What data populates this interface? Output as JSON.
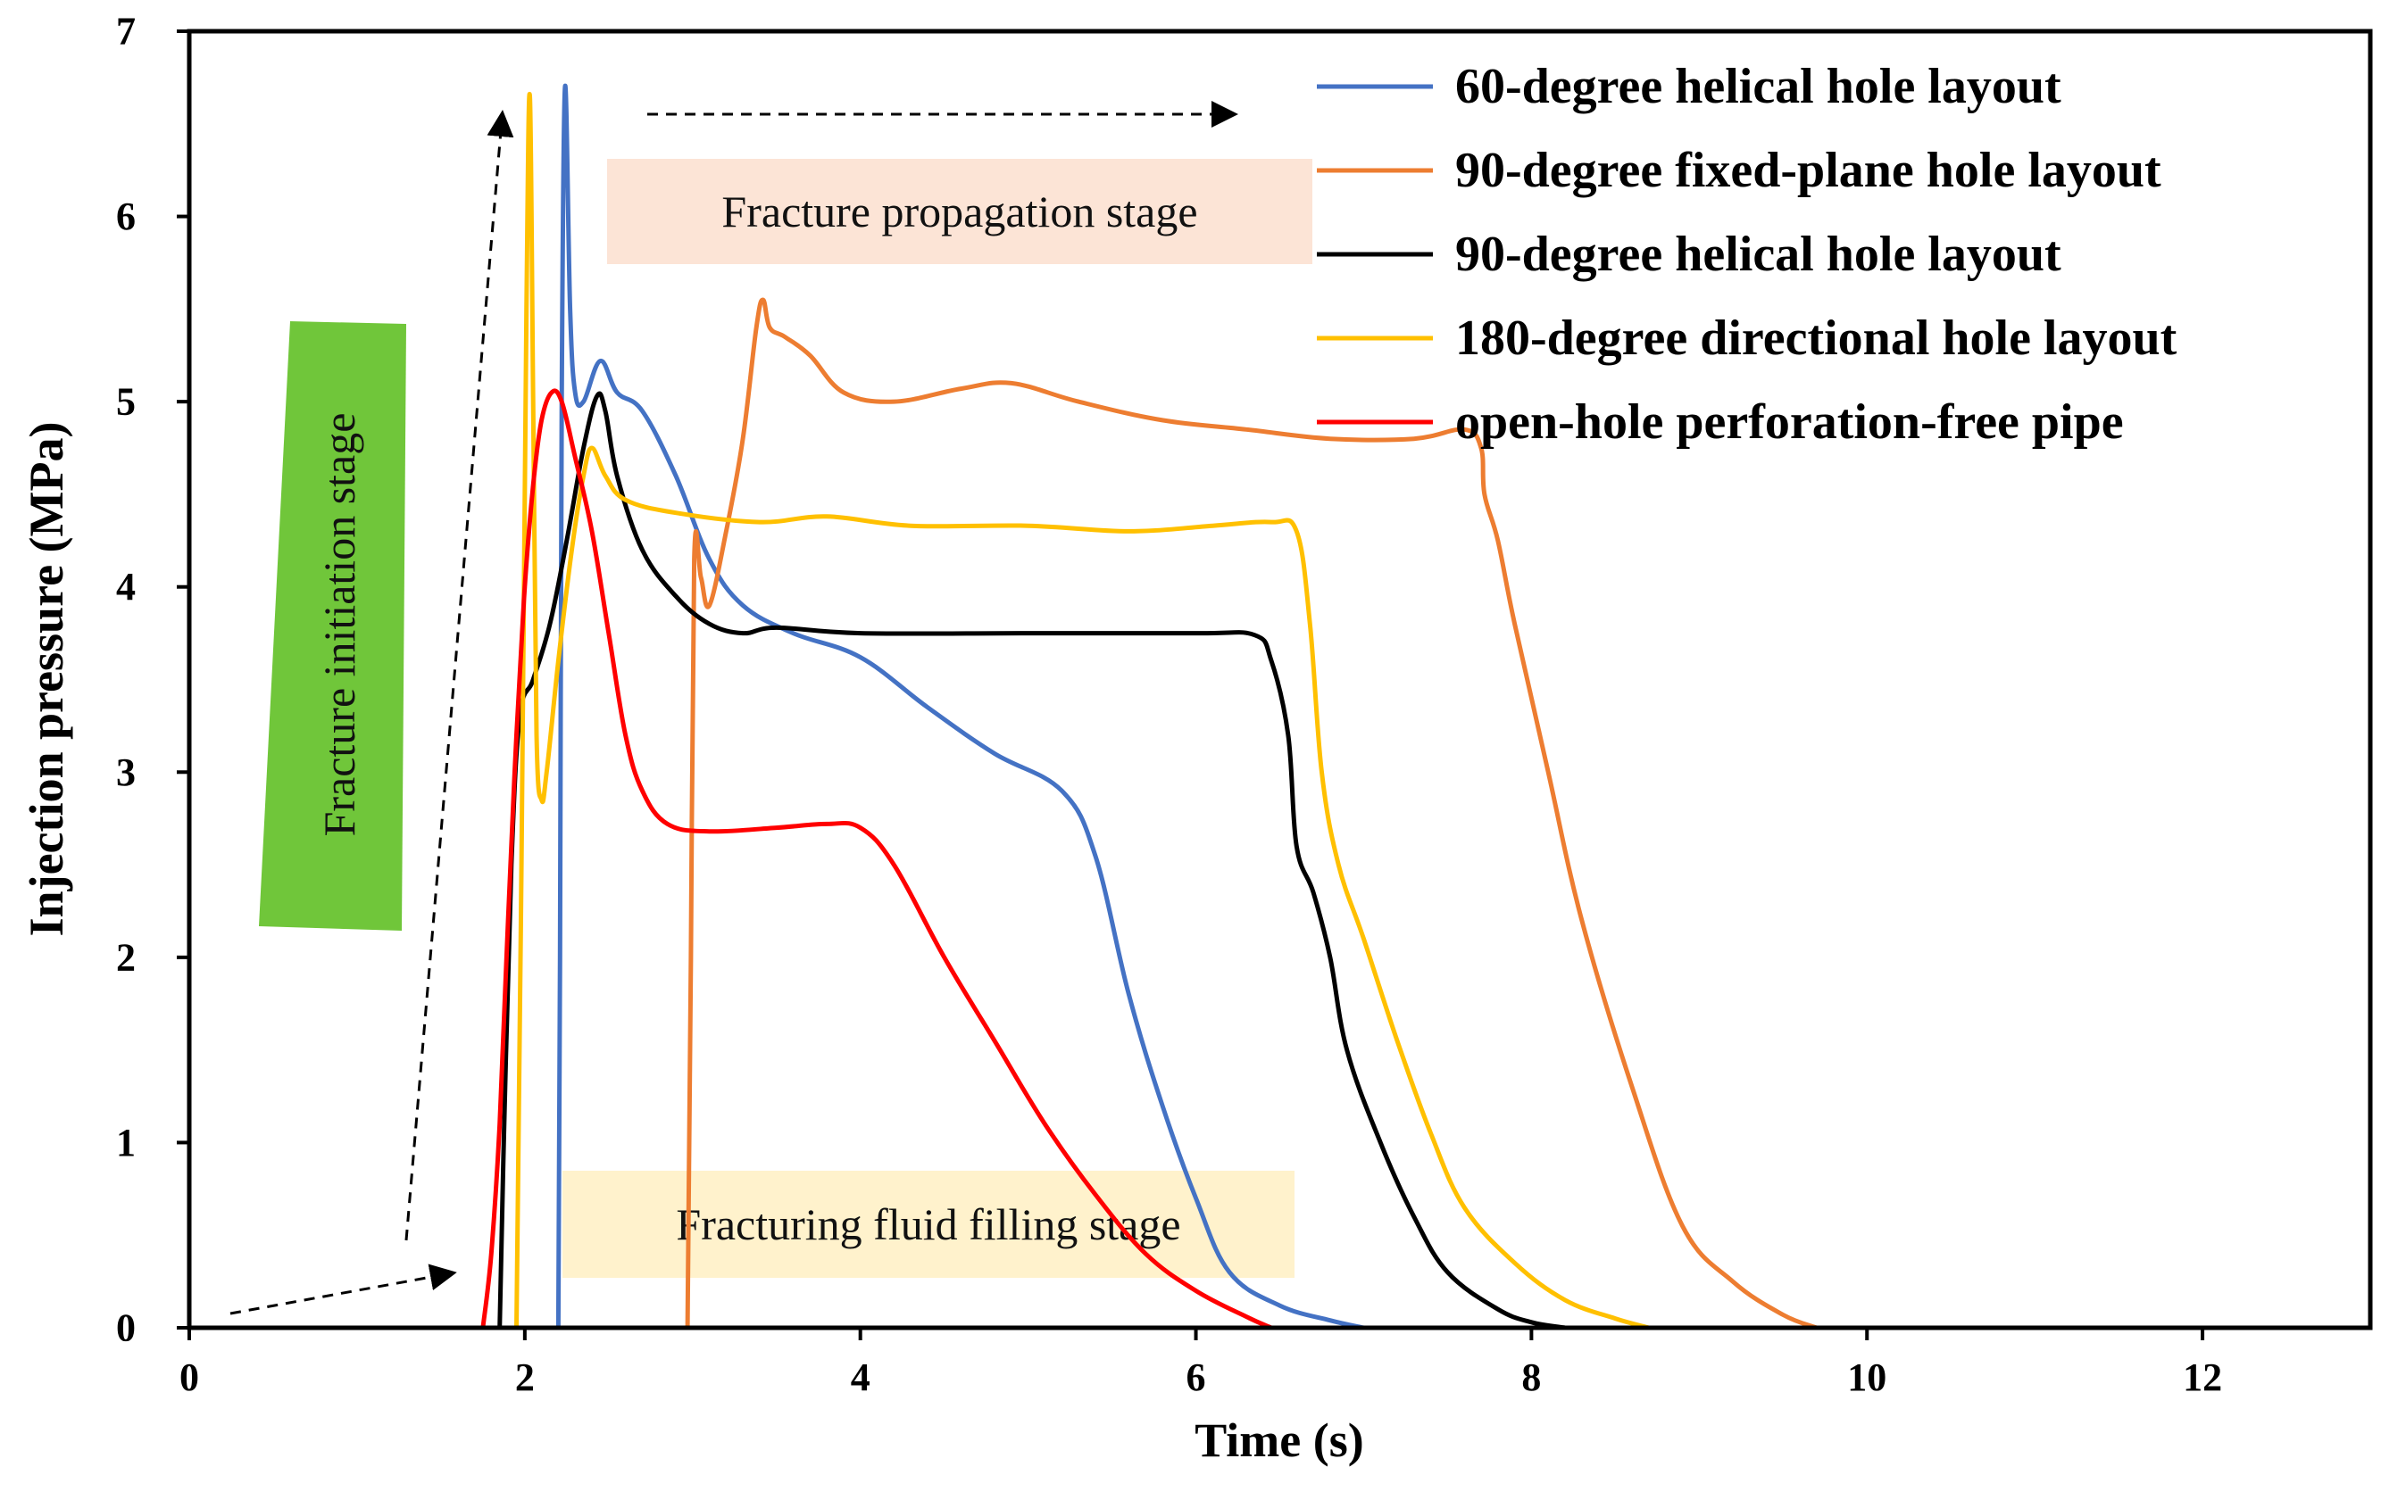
{
  "chart_data": {
    "type": "line",
    "xlabel": "Time (s)",
    "ylabel": "Injection pressure (MPa)",
    "xlim": [
      0,
      13
    ],
    "ylim": [
      0,
      7
    ],
    "xticks": [
      "0",
      "2",
      "4",
      "6",
      "8",
      "10",
      "12"
    ],
    "yticks": [
      "0",
      "1",
      "2",
      "3",
      "4",
      "5",
      "6",
      "7"
    ],
    "legend_position": "top-right",
    "grid": false,
    "series": [
      {
        "name": "60-degree helical hole layout",
        "color": "#4472C4",
        "points": [
          [
            2.2,
            0
          ],
          [
            2.21,
            2.0
          ],
          [
            2.22,
            5.0
          ],
          [
            2.24,
            6.7
          ],
          [
            2.27,
            5.5
          ],
          [
            2.3,
            5.05
          ],
          [
            2.35,
            5.0
          ],
          [
            2.45,
            5.22
          ],
          [
            2.55,
            5.05
          ],
          [
            2.7,
            4.95
          ],
          [
            2.9,
            4.6
          ],
          [
            3.1,
            4.15
          ],
          [
            3.3,
            3.9
          ],
          [
            3.6,
            3.75
          ],
          [
            4.0,
            3.62
          ],
          [
            4.4,
            3.35
          ],
          [
            4.8,
            3.1
          ],
          [
            5.2,
            2.9
          ],
          [
            5.4,
            2.55
          ],
          [
            5.6,
            1.8
          ],
          [
            5.8,
            1.2
          ],
          [
            6.0,
            0.7
          ],
          [
            6.2,
            0.3
          ],
          [
            6.5,
            0.12
          ],
          [
            6.8,
            0.04
          ],
          [
            7.0,
            0
          ]
        ]
      },
      {
        "name": "90-degree fixed-plane hole layout",
        "color": "#ED7D31",
        "points": [
          [
            2.97,
            0
          ],
          [
            2.99,
            2.0
          ],
          [
            3.01,
            4.15
          ],
          [
            3.05,
            4.05
          ],
          [
            3.1,
            3.9
          ],
          [
            3.2,
            4.3
          ],
          [
            3.3,
            4.8
          ],
          [
            3.38,
            5.4
          ],
          [
            3.42,
            5.55
          ],
          [
            3.46,
            5.4
          ],
          [
            3.55,
            5.35
          ],
          [
            3.7,
            5.25
          ],
          [
            3.9,
            5.05
          ],
          [
            4.2,
            5.0
          ],
          [
            4.6,
            5.07
          ],
          [
            4.9,
            5.1
          ],
          [
            5.3,
            5.0
          ],
          [
            5.8,
            4.9
          ],
          [
            6.3,
            4.85
          ],
          [
            6.8,
            4.8
          ],
          [
            7.3,
            4.8
          ],
          [
            7.6,
            4.85
          ],
          [
            7.7,
            4.75
          ],
          [
            7.72,
            4.5
          ],
          [
            7.8,
            4.25
          ],
          [
            7.9,
            3.8
          ],
          [
            8.1,
            3.0
          ],
          [
            8.3,
            2.2
          ],
          [
            8.6,
            1.3
          ],
          [
            8.9,
            0.55
          ],
          [
            9.2,
            0.25
          ],
          [
            9.5,
            0.07
          ],
          [
            9.7,
            0
          ]
        ]
      },
      {
        "name": "90-degree helical hole layout",
        "color": "#000000",
        "points": [
          [
            1.85,
            0
          ],
          [
            1.88,
            1.2
          ],
          [
            1.92,
            2.5
          ],
          [
            1.97,
            3.3
          ],
          [
            2.05,
            3.5
          ],
          [
            2.15,
            3.8
          ],
          [
            2.25,
            4.25
          ],
          [
            2.35,
            4.75
          ],
          [
            2.43,
            5.03
          ],
          [
            2.48,
            4.95
          ],
          [
            2.55,
            4.6
          ],
          [
            2.7,
            4.2
          ],
          [
            2.9,
            3.95
          ],
          [
            3.1,
            3.8
          ],
          [
            3.3,
            3.75
          ],
          [
            3.5,
            3.78
          ],
          [
            4.0,
            3.75
          ],
          [
            5.0,
            3.75
          ],
          [
            6.0,
            3.75
          ],
          [
            6.35,
            3.74
          ],
          [
            6.45,
            3.6
          ],
          [
            6.55,
            3.2
          ],
          [
            6.6,
            2.6
          ],
          [
            6.7,
            2.35
          ],
          [
            6.8,
            2.0
          ],
          [
            6.9,
            1.5
          ],
          [
            7.1,
            1.0
          ],
          [
            7.3,
            0.6
          ],
          [
            7.5,
            0.3
          ],
          [
            7.8,
            0.1
          ],
          [
            8.0,
            0.03
          ],
          [
            8.2,
            0
          ]
        ]
      },
      {
        "name": "180-degree directional hole layout",
        "color": "#FFC000",
        "points": [
          [
            1.95,
            0
          ],
          [
            1.98,
            2.5
          ],
          [
            2.01,
            5.5
          ],
          [
            2.03,
            6.65
          ],
          [
            2.05,
            5.0
          ],
          [
            2.07,
            3.2
          ],
          [
            2.1,
            2.85
          ],
          [
            2.13,
            3.0
          ],
          [
            2.2,
            3.6
          ],
          [
            2.28,
            4.2
          ],
          [
            2.35,
            4.6
          ],
          [
            2.4,
            4.75
          ],
          [
            2.48,
            4.6
          ],
          [
            2.6,
            4.47
          ],
          [
            2.9,
            4.4
          ],
          [
            3.4,
            4.35
          ],
          [
            3.8,
            4.38
          ],
          [
            4.3,
            4.33
          ],
          [
            5.0,
            4.33
          ],
          [
            5.6,
            4.3
          ],
          [
            6.1,
            4.33
          ],
          [
            6.45,
            4.35
          ],
          [
            6.6,
            4.3
          ],
          [
            6.68,
            3.8
          ],
          [
            6.75,
            3.0
          ],
          [
            6.85,
            2.5
          ],
          [
            7.0,
            2.1
          ],
          [
            7.2,
            1.55
          ],
          [
            7.4,
            1.05
          ],
          [
            7.6,
            0.65
          ],
          [
            7.9,
            0.35
          ],
          [
            8.2,
            0.15
          ],
          [
            8.5,
            0.05
          ],
          [
            8.7,
            0
          ]
        ]
      },
      {
        "name": "open-hole perforation-free pipe",
        "color": "#FF0000",
        "points": [
          [
            1.75,
            0
          ],
          [
            1.8,
            0.4
          ],
          [
            1.85,
            1.1
          ],
          [
            1.9,
            2.2
          ],
          [
            1.95,
            3.2
          ],
          [
            2.0,
            4.0
          ],
          [
            2.05,
            4.55
          ],
          [
            2.1,
            4.9
          ],
          [
            2.16,
            5.05
          ],
          [
            2.22,
            5.0
          ],
          [
            2.3,
            4.7
          ],
          [
            2.4,
            4.3
          ],
          [
            2.5,
            3.75
          ],
          [
            2.6,
            3.2
          ],
          [
            2.7,
            2.9
          ],
          [
            2.85,
            2.72
          ],
          [
            3.1,
            2.68
          ],
          [
            3.5,
            2.7
          ],
          [
            3.8,
            2.72
          ],
          [
            4.0,
            2.7
          ],
          [
            4.2,
            2.5
          ],
          [
            4.5,
            2.0
          ],
          [
            4.8,
            1.55
          ],
          [
            5.1,
            1.1
          ],
          [
            5.4,
            0.72
          ],
          [
            5.7,
            0.4
          ],
          [
            6.0,
            0.2
          ],
          [
            6.3,
            0.06
          ],
          [
            6.45,
            0
          ]
        ]
      }
    ],
    "annotations": [
      {
        "text": "Fracture propagation stage",
        "bg": "#FCE4D6"
      },
      {
        "text": "Fracture initiation  stage",
        "bg": "#70C63A"
      },
      {
        "text": "Fracturing  fluid  filling  stage",
        "bg": "#FFF2CC"
      }
    ]
  }
}
